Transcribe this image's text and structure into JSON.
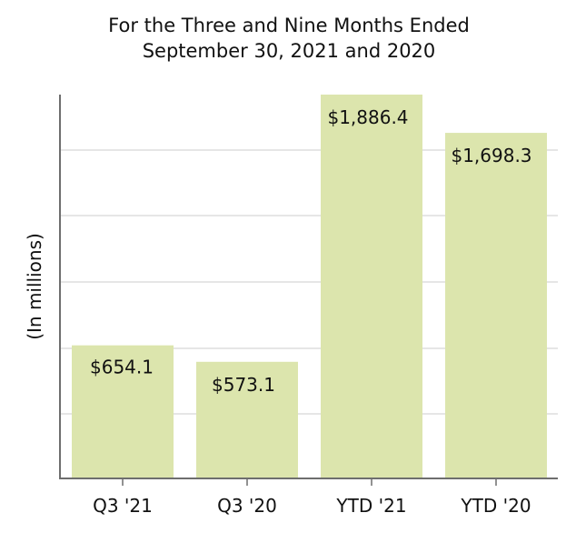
{
  "chart_data": {
    "type": "bar",
    "title_lines": [
      "For the Three and Nine Months Ended",
      "September 30, 2021 and 2020"
    ],
    "xlabel": "",
    "ylabel": "(In millions)",
    "categories": [
      "Q3 '21",
      "Q3 '20",
      "YTD '21",
      "YTD '20"
    ],
    "values": [
      654.1,
      573.1,
      1886.4,
      1698.3
    ],
    "data_labels": [
      "$654.1",
      "$573.1",
      "$1,886.4",
      "$1,698.3"
    ],
    "ylim": [
      0,
      1886.4
    ],
    "y_ticks_labeled": false,
    "grid": true,
    "legend": "none",
    "colors": {
      "bar": "#dce5ad",
      "grid": "#e6e6e6",
      "axis": "#6e6e6e",
      "text": "#111111"
    }
  }
}
